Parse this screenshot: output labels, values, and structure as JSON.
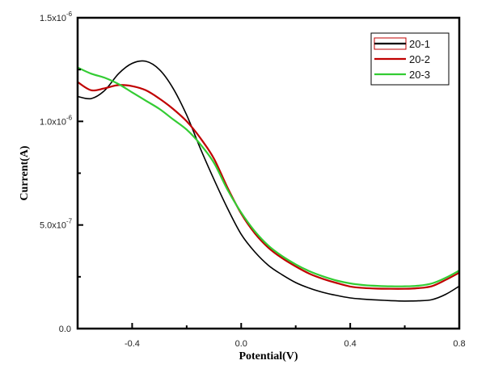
{
  "chart_data": {
    "type": "line",
    "title": "",
    "xlabel": "Potential(V)",
    "ylabel": "Current(A)",
    "xlim": [
      -0.6,
      0.8
    ],
    "ylim": [
      0,
      1.5e-06
    ],
    "grid": false,
    "legend_position": "top-right",
    "x_ticks": [
      {
        "value": -0.4,
        "label": "-0.4"
      },
      {
        "value": 0.0,
        "label": "0.0"
      },
      {
        "value": 0.4,
        "label": "0.4"
      },
      {
        "value": 0.8,
        "label": "0.8"
      }
    ],
    "x_minor_ticks": [
      -0.2,
      0.2,
      0.6
    ],
    "y_ticks": [
      {
        "value": 0,
        "label": "0.0",
        "exp": ""
      },
      {
        "value": 5e-07,
        "label": "5.0x10",
        "exp": "-7"
      },
      {
        "value": 1e-06,
        "label": "1.0x10",
        "exp": "-6"
      },
      {
        "value": 1.5e-06,
        "label": "1.5x10",
        "exp": "-6"
      }
    ],
    "y_minor_ticks": [
      2.5e-07,
      7.5e-07,
      1.25e-06
    ],
    "x": [
      -0.6,
      -0.55,
      -0.5,
      -0.45,
      -0.4,
      -0.35,
      -0.3,
      -0.25,
      -0.2,
      -0.15,
      -0.1,
      -0.05,
      0.0,
      0.05,
      0.1,
      0.15,
      0.2,
      0.25,
      0.3,
      0.35,
      0.4,
      0.45,
      0.5,
      0.55,
      0.6,
      0.65,
      0.7,
      0.75,
      0.8
    ],
    "series": [
      {
        "name": "20-1",
        "color": "#000000",
        "values": [
          1.12e-06,
          1.11e-06,
          1.15e-06,
          1.23e-06,
          1.28e-06,
          1.29e-06,
          1.25e-06,
          1.16e-06,
          1.03e-06,
          8.7e-07,
          7.2e-07,
          5.8e-07,
          4.55e-07,
          3.7e-07,
          3.05e-07,
          2.6e-07,
          2.22e-07,
          1.95e-07,
          1.75e-07,
          1.6e-07,
          1.48e-07,
          1.42e-07,
          1.38e-07,
          1.35e-07,
          1.33e-07,
          1.34e-07,
          1.4e-07,
          1.65e-07,
          2.05e-07
        ]
      },
      {
        "name": "20-2",
        "color": "#c00000",
        "values": [
          1.19e-06,
          1.15e-06,
          1.16e-06,
          1.175e-06,
          1.17e-06,
          1.15e-06,
          1.11e-06,
          1.06e-06,
          1e-06,
          9.2e-07,
          8.2e-07,
          6.8e-07,
          5.55e-07,
          4.6e-07,
          3.9e-07,
          3.4e-07,
          3e-07,
          2.65e-07,
          2.4e-07,
          2.2e-07,
          2.03e-07,
          1.96e-07,
          1.93e-07,
          1.92e-07,
          1.92e-07,
          1.95e-07,
          2.05e-07,
          2.35e-07,
          2.7e-07
        ]
      },
      {
        "name": "20-3",
        "color": "#33cc33",
        "values": [
          1.26e-06,
          1.23e-06,
          1.21e-06,
          1.18e-06,
          1.14e-06,
          1.1e-06,
          1.06e-06,
          1.01e-06,
          9.6e-07,
          8.9e-07,
          8e-07,
          6.7e-07,
          5.6e-07,
          4.7e-07,
          4e-07,
          3.5e-07,
          3.1e-07,
          2.77e-07,
          2.52e-07,
          2.32e-07,
          2.18e-07,
          2.1e-07,
          2.06e-07,
          2.04e-07,
          2.04e-07,
          2.07e-07,
          2.18e-07,
          2.45e-07,
          2.8e-07
        ]
      }
    ]
  }
}
